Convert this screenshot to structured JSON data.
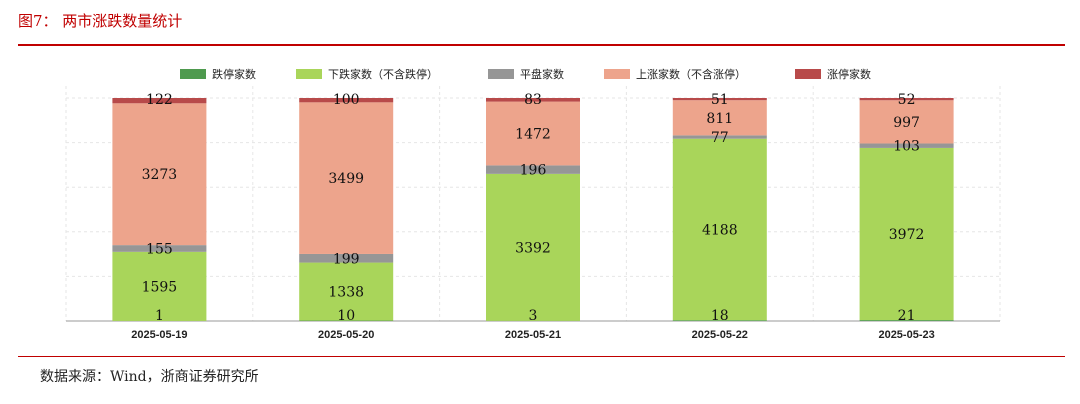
{
  "title": "图7： 两市涨跌数量统计",
  "source": "数据来源：Wind，浙商证券研究所",
  "chart_data": {
    "type": "bar",
    "stacked": true,
    "categories": [
      "2025-05-19",
      "2025-05-20",
      "2025-05-21",
      "2025-05-22",
      "2025-05-23"
    ],
    "series": [
      {
        "name": "跌停家数",
        "color": "#4e9a4e",
        "values": [
          1,
          10,
          3,
          18,
          21
        ]
      },
      {
        "name": "下跌家数（不含跌停）",
        "color": "#a9d55a",
        "values": [
          1595,
          1338,
          3392,
          4188,
          3972
        ]
      },
      {
        "name": "平盘家数",
        "color": "#969696",
        "values": [
          155,
          199,
          196,
          77,
          103
        ]
      },
      {
        "name": "上涨家数（不含涨停）",
        "color": "#eda48c",
        "values": [
          3273,
          3499,
          1472,
          811,
          997
        ]
      },
      {
        "name": "涨停家数",
        "color": "#b84a4a",
        "values": [
          122,
          100,
          83,
          51,
          52
        ]
      }
    ],
    "legend_position": "top",
    "grid": true
  }
}
